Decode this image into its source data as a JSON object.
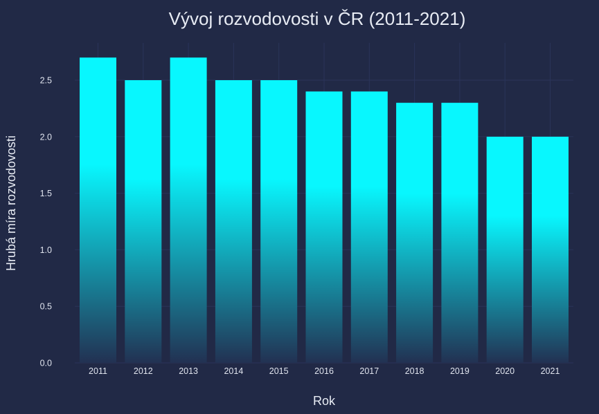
{
  "chart_data": {
    "type": "bar",
    "title": "Vývoj rozvodovosti v ČR (2011-2021)",
    "xlabel": "Rok",
    "ylabel": "Hrubá míra rozvodovosti",
    "categories": [
      "2011",
      "2012",
      "2013",
      "2014",
      "2015",
      "2016",
      "2017",
      "2018",
      "2019",
      "2020",
      "2021"
    ],
    "values": [
      2.7,
      2.5,
      2.7,
      2.5,
      2.5,
      2.4,
      2.4,
      2.3,
      2.3,
      2.0,
      2.0
    ],
    "ylim": [
      0,
      2.83
    ],
    "yticks": [
      "0.0",
      "0.5",
      "1.0",
      "1.5",
      "2.0",
      "2.5"
    ],
    "grid": true,
    "colors": {
      "background": "#212946",
      "bar_top": "#08F7FE",
      "bar_bottom": "#223152",
      "grid": "#2A3459",
      "text": "#E8ECF4"
    }
  }
}
